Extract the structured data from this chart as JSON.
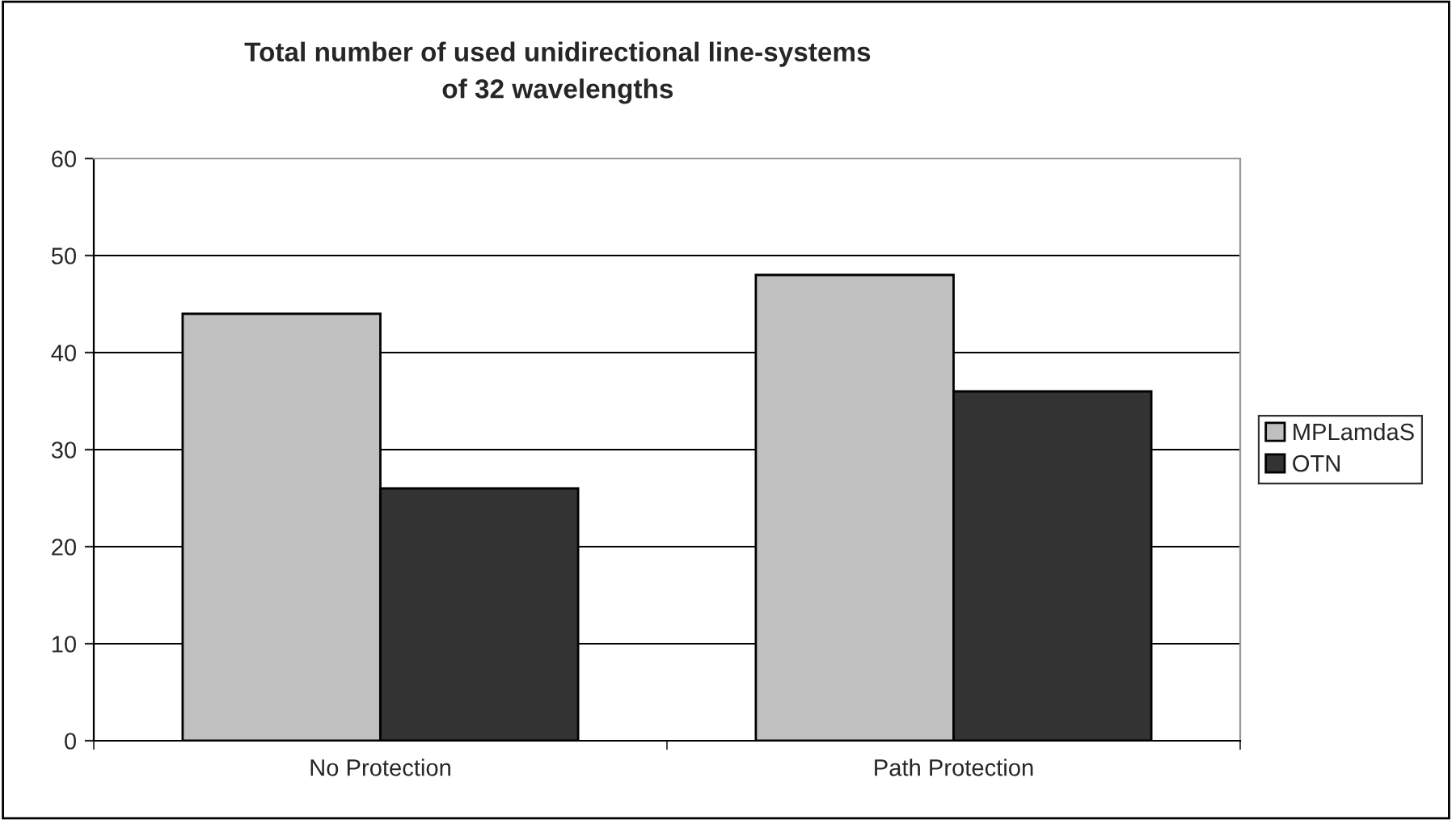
{
  "chart_data": {
    "type": "bar",
    "title": "Total number of used unidirectional line-systems\nof 32 wavelengths",
    "categories": [
      "No Protection",
      "Path Protection"
    ],
    "series": [
      {
        "name": "MPLamdaS",
        "color": "#c0c0c0",
        "values": [
          44,
          48
        ]
      },
      {
        "name": "OTN",
        "color": "#333333",
        "values": [
          26,
          36
        ]
      }
    ],
    "ylim": [
      0,
      60
    ],
    "yticks": [
      0,
      10,
      20,
      30,
      40,
      50,
      60
    ],
    "grid": "y",
    "legend": "right"
  }
}
